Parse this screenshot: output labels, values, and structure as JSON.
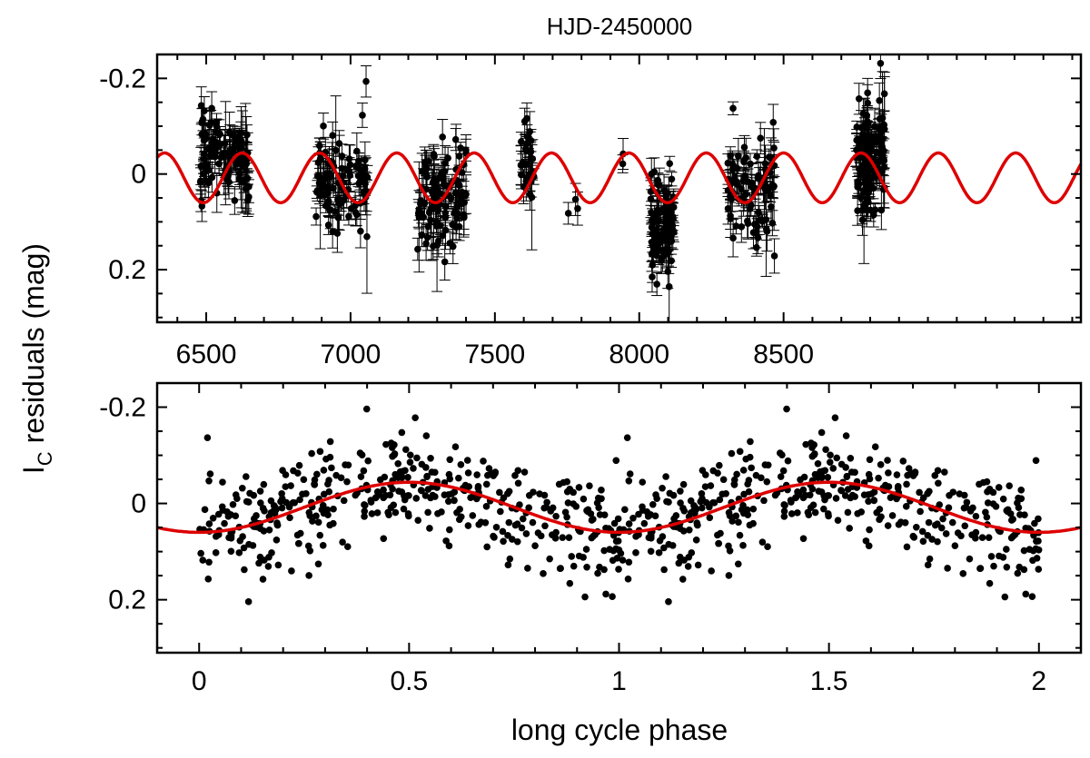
{
  "chart_data": [
    {
      "id": "top-panel",
      "type": "scatter",
      "title": "HJD-2450000",
      "xlabel": "",
      "ylabel": "I",
      "ylabel_subscript": "C",
      "ylabel_suffix": " residuals (mag)",
      "xlim": [
        6330,
        9530
      ],
      "ylim": [
        0.31,
        -0.25
      ],
      "y_inverted": true,
      "xticks_major": [
        6500,
        7000,
        7500,
        8000,
        8500
      ],
      "xtick_labels": [
        "6500",
        "7000",
        "7500",
        "8000",
        "8500"
      ],
      "yticks_major": [
        -0.2,
        0,
        0.2
      ],
      "ytick_labels": [
        "-0.2",
        "0",
        "0.2"
      ],
      "grid": false,
      "error_bars": true,
      "observation_groups": [
        {
          "start": 6480,
          "end": 6650,
          "y_center": -0.03,
          "scatter": 0.07,
          "count": 110
        },
        {
          "start": 6880,
          "end": 7060,
          "y_center": 0.02,
          "scatter": 0.08,
          "count": 100
        },
        {
          "start": 7230,
          "end": 7400,
          "y_center": 0.05,
          "scatter": 0.08,
          "count": 110
        },
        {
          "start": 7590,
          "end": 7640,
          "y_center": -0.03,
          "scatter": 0.07,
          "count": 30
        },
        {
          "start": 7730,
          "end": 7790,
          "y_center": 0.08,
          "scatter": 0.03,
          "count": 3
        },
        {
          "start": 7940,
          "end": 7960,
          "y_center": -0.03,
          "scatter": 0.05,
          "count": 2
        },
        {
          "start": 8040,
          "end": 8120,
          "y_center": 0.12,
          "scatter": 0.07,
          "count": 90
        },
        {
          "start": 8300,
          "end": 8470,
          "y_center": 0.02,
          "scatter": 0.09,
          "count": 90
        },
        {
          "start": 8750,
          "end": 8850,
          "y_center": -0.03,
          "scatter": 0.09,
          "count": 130
        }
      ],
      "model_curve": {
        "amplitude": 0.052,
        "offset": 0.008,
        "period_days": 268,
        "epoch_min": 6490,
        "color": "#dd0000"
      }
    },
    {
      "id": "bottom-panel",
      "type": "scatter",
      "title": "",
      "xlabel": "long cycle phase",
      "ylabel": "I",
      "ylabel_subscript": "C",
      "ylabel_suffix": " residuals (mag)",
      "xlim": [
        -0.1,
        2.1
      ],
      "ylim": [
        0.31,
        -0.25
      ],
      "y_inverted": true,
      "xticks_major": [
        0,
        0.5,
        1,
        1.5,
        2
      ],
      "xtick_labels": [
        "0",
        "0.5",
        "1",
        "1.5",
        "2"
      ],
      "yticks_major": [
        -0.2,
        0,
        0.2
      ],
      "ytick_labels": [
        "-0.2",
        "0",
        "0.2"
      ],
      "grid": false,
      "error_bars": false,
      "point_count_per_cycle": 430,
      "phase_range": [
        0,
        2
      ],
      "model_curve": {
        "amplitude": 0.052,
        "offset": 0.008,
        "period_phase": 1,
        "min_phase": 0,
        "color": "#dd0000"
      }
    }
  ]
}
